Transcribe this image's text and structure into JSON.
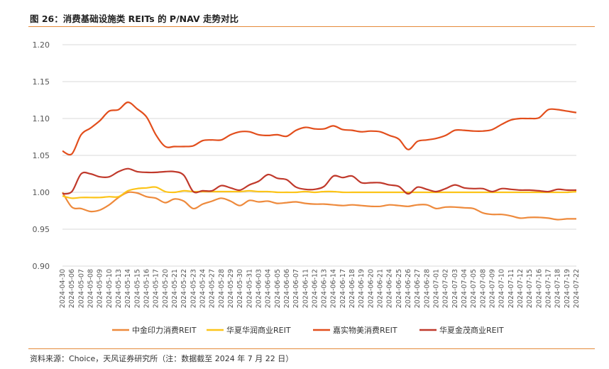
{
  "header": {
    "title": "图 26：消费基础设施类 REITs 的 P/NAV 走势对比"
  },
  "footer": {
    "source": "资料来源：Choice，天风证券研究所（注：数据截至 2024 年 7 月 22 日）"
  },
  "colors": {
    "accent_rule": "#e58a3a"
  },
  "chart_data": {
    "type": "line",
    "title": "",
    "xlabel": "",
    "ylabel": "",
    "ylim": [
      0.9,
      1.2
    ],
    "y_ticks": [
      "1.20",
      "1.15",
      "1.10",
      "1.05",
      "1.00",
      "0.95",
      "0.90"
    ],
    "y_tick_values": [
      1.2,
      1.15,
      1.1,
      1.05,
      1.0,
      0.95,
      0.9
    ],
    "grid": true,
    "legend_position": "bottom",
    "x_tick_labels": [
      "2024-04-30",
      "2024-05-06",
      "2024-05-07",
      "2024-05-08",
      "2024-05-09",
      "2024-05-10",
      "2024-05-13",
      "2024-05-14",
      "2024-05-15",
      "2024-05-16",
      "2024-05-17",
      "2024-05-20",
      "2024-05-21",
      "2024-05-22",
      "2024-05-23",
      "2024-05-24",
      "2024-05-27",
      "2024-05-28",
      "2024-05-29",
      "2024-05-30",
      "2024-05-31",
      "2024-06-03",
      "2024-06-04",
      "2024-06-05",
      "2024-06-06",
      "2024-06-07",
      "2024-06-11",
      "2024-06-12",
      "2024-06-13",
      "2024-06-14",
      "2024-06-17",
      "2024-06-18",
      "2024-06-19",
      "2024-06-20",
      "2024-06-21",
      "2024-06-24",
      "2024-06-25",
      "2024-06-26",
      "2024-06-27",
      "2024-06-28",
      "2024-07-01",
      "2024-07-02",
      "2024-07-03",
      "2024-07-04",
      "2024-07-05",
      "2024-07-08",
      "2024-07-09",
      "2024-07-10",
      "2024-07-11",
      "2024-07-12",
      "2024-07-15",
      "2024-07-16",
      "2024-07-17",
      "2024-07-18",
      "2024-07-19",
      "2024-07-22"
    ],
    "series": [
      {
        "name": "中金印力消费REIT",
        "color": "#ee8a3c",
        "values": [
          1.0,
          0.98,
          0.978,
          0.974,
          0.976,
          0.983,
          0.993,
          1.0,
          0.999,
          0.994,
          0.992,
          0.986,
          0.991,
          0.988,
          0.978,
          0.984,
          0.988,
          0.992,
          0.988,
          0.982,
          0.989,
          0.987,
          0.988,
          0.985,
          0.986,
          0.987,
          0.985,
          0.984,
          0.984,
          0.983,
          0.982,
          0.983,
          0.982,
          0.981,
          0.981,
          0.983,
          0.982,
          0.981,
          0.983,
          0.983,
          0.978,
          0.98,
          0.98,
          0.979,
          0.978,
          0.972,
          0.97,
          0.97,
          0.968,
          0.965,
          0.966,
          0.966,
          0.965,
          0.963,
          0.964,
          0.964
        ]
      },
      {
        "name": "华夏华润商业REIT",
        "color": "#fcc419",
        "values": [
          0.995,
          0.992,
          0.993,
          0.993,
          0.993,
          0.994,
          0.994,
          1.002,
          1.005,
          1.006,
          1.007,
          1.001,
          1.0,
          1.002,
          1.001,
          1.001,
          1.001,
          1.001,
          1.001,
          1.001,
          1.002,
          1.001,
          1.001,
          1.0,
          1.0,
          1.0,
          1.001,
          1.0,
          1.001,
          1.001,
          1.0,
          1.0,
          1.0,
          1.0,
          1.0,
          1.0,
          1.0,
          1.0,
          1.0,
          1.0,
          1.0,
          1.0,
          1.0,
          1.0,
          1.0,
          1.0,
          1.0,
          1.0,
          1.0,
          1.0,
          1.0,
          1.0,
          1.0,
          1.0,
          1.0,
          1.001
        ]
      },
      {
        "name": "嘉实物美消费REIT",
        "color": "#e24e1c",
        "values": [
          1.056,
          1.052,
          1.078,
          1.087,
          1.097,
          1.11,
          1.112,
          1.122,
          1.113,
          1.102,
          1.078,
          1.062,
          1.062,
          1.062,
          1.063,
          1.07,
          1.071,
          1.071,
          1.078,
          1.082,
          1.082,
          1.078,
          1.077,
          1.078,
          1.076,
          1.084,
          1.088,
          1.086,
          1.086,
          1.09,
          1.085,
          1.084,
          1.082,
          1.083,
          1.082,
          1.077,
          1.072,
          1.058,
          1.069,
          1.071,
          1.073,
          1.077,
          1.084,
          1.084,
          1.083,
          1.083,
          1.085,
          1.092,
          1.098,
          1.1,
          1.1,
          1.101,
          1.112,
          1.112,
          1.11,
          1.108
        ]
      },
      {
        "name": "华夏金茂商业REIT",
        "color": "#c0392b",
        "values": [
          0.998,
          1.001,
          1.025,
          1.025,
          1.021,
          1.021,
          1.028,
          1.032,
          1.028,
          1.027,
          1.027,
          1.028,
          1.028,
          1.023,
          1.001,
          1.002,
          1.002,
          1.009,
          1.006,
          1.003,
          1.01,
          1.015,
          1.024,
          1.019,
          1.017,
          1.007,
          1.004,
          1.004,
          1.008,
          1.022,
          1.02,
          1.022,
          1.013,
          1.013,
          1.013,
          1.01,
          1.008,
          0.998,
          1.007,
          1.004,
          1.001,
          1.005,
          1.01,
          1.006,
          1.005,
          1.005,
          1.001,
          1.005,
          1.004,
          1.003,
          1.003,
          1.002,
          1.001,
          1.004,
          1.003,
          1.003
        ]
      }
    ]
  }
}
